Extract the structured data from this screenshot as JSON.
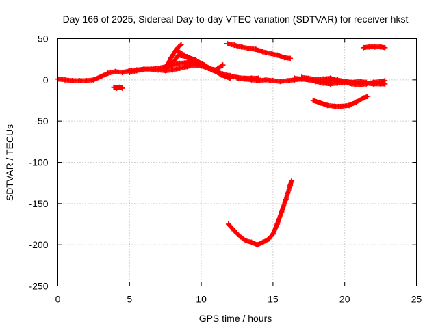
{
  "chart_data": {
    "type": "scatter",
    "title": "Day 166 of 2025, Sidereal Day-to-day VTEC variation (SDTVAR) for receiver hkst",
    "xlabel": "GPS time / hours",
    "ylabel": "SDTVAR / TECUs",
    "xlim": [
      0,
      25
    ],
    "ylim": [
      -250,
      50
    ],
    "xticks": [
      0,
      5,
      10,
      15,
      20,
      25
    ],
    "yticks": [
      -250,
      -200,
      -150,
      -100,
      -50,
      0,
      50
    ],
    "grid": true,
    "marker": "plus",
    "color": "#ff0000",
    "series": [
      {
        "x": [
          0,
          0.5,
          1,
          1.5,
          2,
          2.5,
          3,
          3.5,
          4,
          4.5,
          5,
          5.5,
          6,
          6.5,
          7,
          7.5,
          8,
          8.5,
          9,
          9.5,
          10,
          10.5,
          11,
          11.5,
          12,
          12.5,
          13,
          13.5,
          14
        ],
        "y": [
          1,
          0,
          -1,
          -1,
          -1,
          0,
          4,
          8,
          10,
          9,
          11,
          12,
          13,
          13,
          14,
          16,
          18,
          20,
          21,
          20,
          18,
          14,
          10,
          7,
          5,
          3,
          2,
          2,
          2
        ]
      },
      {
        "x": [
          5,
          5.5,
          6,
          6.5,
          7,
          7.5,
          8,
          8.5,
          9,
          9.5,
          10,
          10.5,
          11,
          11.5
        ],
        "y": [
          9,
          11,
          13,
          13,
          12,
          11,
          12,
          14,
          16,
          18,
          17,
          14,
          12,
          18
        ]
      },
      {
        "x": [
          3.9,
          4.1,
          4.3,
          4.5
        ],
        "y": [
          -9,
          -10,
          -9,
          -10
        ]
      },
      {
        "x": [
          7.5,
          7.9,
          8.3,
          8.6
        ],
        "y": [
          13,
          27,
          38,
          43
        ]
      },
      {
        "x": [
          7.6,
          8,
          8.4,
          9,
          9.6,
          10.2,
          10.8,
          11.4,
          12
        ],
        "y": [
          14,
          20,
          30,
          28,
          24,
          18,
          12,
          6,
          2
        ]
      },
      {
        "x": [
          8.3,
          8.8,
          9.3,
          9.8,
          10.3,
          10.8,
          11.3,
          11.8
        ],
        "y": [
          36,
          30,
          24,
          20,
          16,
          12,
          8,
          4
        ]
      },
      {
        "x": [
          11.8,
          12.3,
          12.8,
          13.3,
          13.8,
          14.3,
          14.8,
          15.3,
          15.8,
          16.2
        ],
        "y": [
          44,
          42,
          40,
          38,
          37,
          34,
          32,
          30,
          27,
          26
        ]
      },
      {
        "x": [
          12.5,
          13,
          13.5,
          14,
          14.5,
          15,
          15.5,
          16,
          16.5,
          17,
          17.5,
          18,
          18.5,
          19,
          19.5,
          20,
          20.5,
          21,
          21.5,
          22,
          22.5,
          22.8
        ],
        "y": [
          2,
          1,
          0,
          -1,
          0,
          -1,
          -2,
          -1,
          0,
          1,
          0,
          -1,
          -2,
          -1,
          0,
          -2,
          -3,
          -4,
          -4,
          -5,
          -5,
          -5
        ]
      },
      {
        "x": [
          16.5,
          17,
          17.5,
          18,
          18.5,
          19,
          19.5,
          20,
          20.5,
          21,
          21.5,
          22,
          22.5,
          22.8
        ],
        "y": [
          2,
          1,
          0,
          -2,
          -4,
          -5,
          -4,
          -3,
          -5,
          -6,
          -5,
          -3,
          -2,
          -1
        ]
      },
      {
        "x": [
          17,
          17.5,
          18,
          18.5,
          19,
          19.5,
          20,
          20.5,
          21,
          21.5
        ],
        "y": [
          3,
          2,
          0,
          1,
          2,
          -1,
          -2,
          -3,
          -2,
          -3
        ]
      },
      {
        "x": [
          17.8,
          18.3,
          18.8,
          19.3,
          19.8,
          20.3,
          20.8,
          21.3,
          21.6
        ],
        "y": [
          -25,
          -28,
          -31,
          -32,
          -32,
          -31,
          -27,
          -22,
          -20
        ]
      },
      {
        "x": [
          21.3,
          21.7,
          22.1,
          22.5,
          22.8
        ],
        "y": [
          39,
          40,
          40,
          40,
          39
        ]
      },
      {
        "x": [
          11.9,
          12.3,
          12.7,
          13.1,
          13.5,
          13.9,
          14.3,
          14.7,
          15.0,
          15.3,
          15.6,
          15.9,
          16.2,
          16.3
        ],
        "y": [
          -175,
          -183,
          -190,
          -195,
          -197,
          -200,
          -197,
          -193,
          -187,
          -175,
          -160,
          -145,
          -128,
          -122
        ]
      }
    ]
  }
}
